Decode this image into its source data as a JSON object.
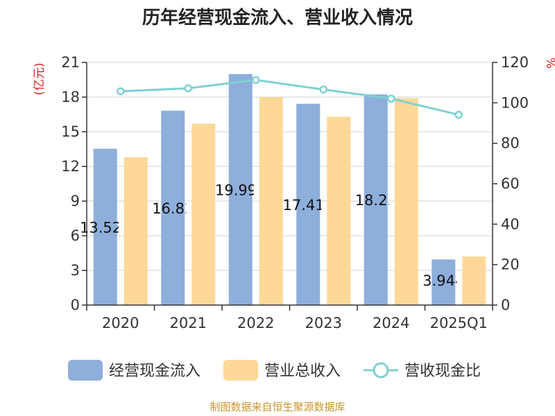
{
  "chart_data": {
    "type": "bar",
    "title": "历年经营现金流入、营业收入情况",
    "categories": [
      "2020",
      "2021",
      "2022",
      "2023",
      "2024",
      "2025Q1"
    ],
    "y_left": {
      "unit": "(亿元)",
      "ylim": [
        0,
        21
      ],
      "ticks": [
        "0",
        "3",
        "6",
        "9",
        "12",
        "15",
        "18",
        "21"
      ]
    },
    "y_right": {
      "unit": "%",
      "ylim": [
        0,
        120
      ],
      "ticks": [
        "0",
        "20",
        "40",
        "60",
        "80",
        "100",
        "120"
      ]
    },
    "series": [
      {
        "name": "经营现金流入",
        "type": "bar",
        "axis": "left",
        "color": "#8eaedb",
        "values": [
          13.527,
          16.82,
          19.993,
          17.417,
          18.23,
          3.944
        ],
        "labels": [
          "13.527",
          "16.82",
          "19.993",
          "17.417",
          "18.23",
          "3.944"
        ]
      },
      {
        "name": "营业总收入",
        "type": "bar",
        "axis": "left",
        "color": "#fdd898",
        "values": [
          12.8,
          15.7,
          18.0,
          16.3,
          17.9,
          4.2
        ]
      },
      {
        "name": "营收现金比",
        "type": "line",
        "axis": "right",
        "color": "#7fd0d2",
        "values": [
          105.7,
          107.2,
          111.3,
          106.6,
          102.1,
          94.1
        ]
      }
    ],
    "grid": true,
    "legend_position": "bottom"
  },
  "source": "制图数据来自恒生聚源数据库"
}
